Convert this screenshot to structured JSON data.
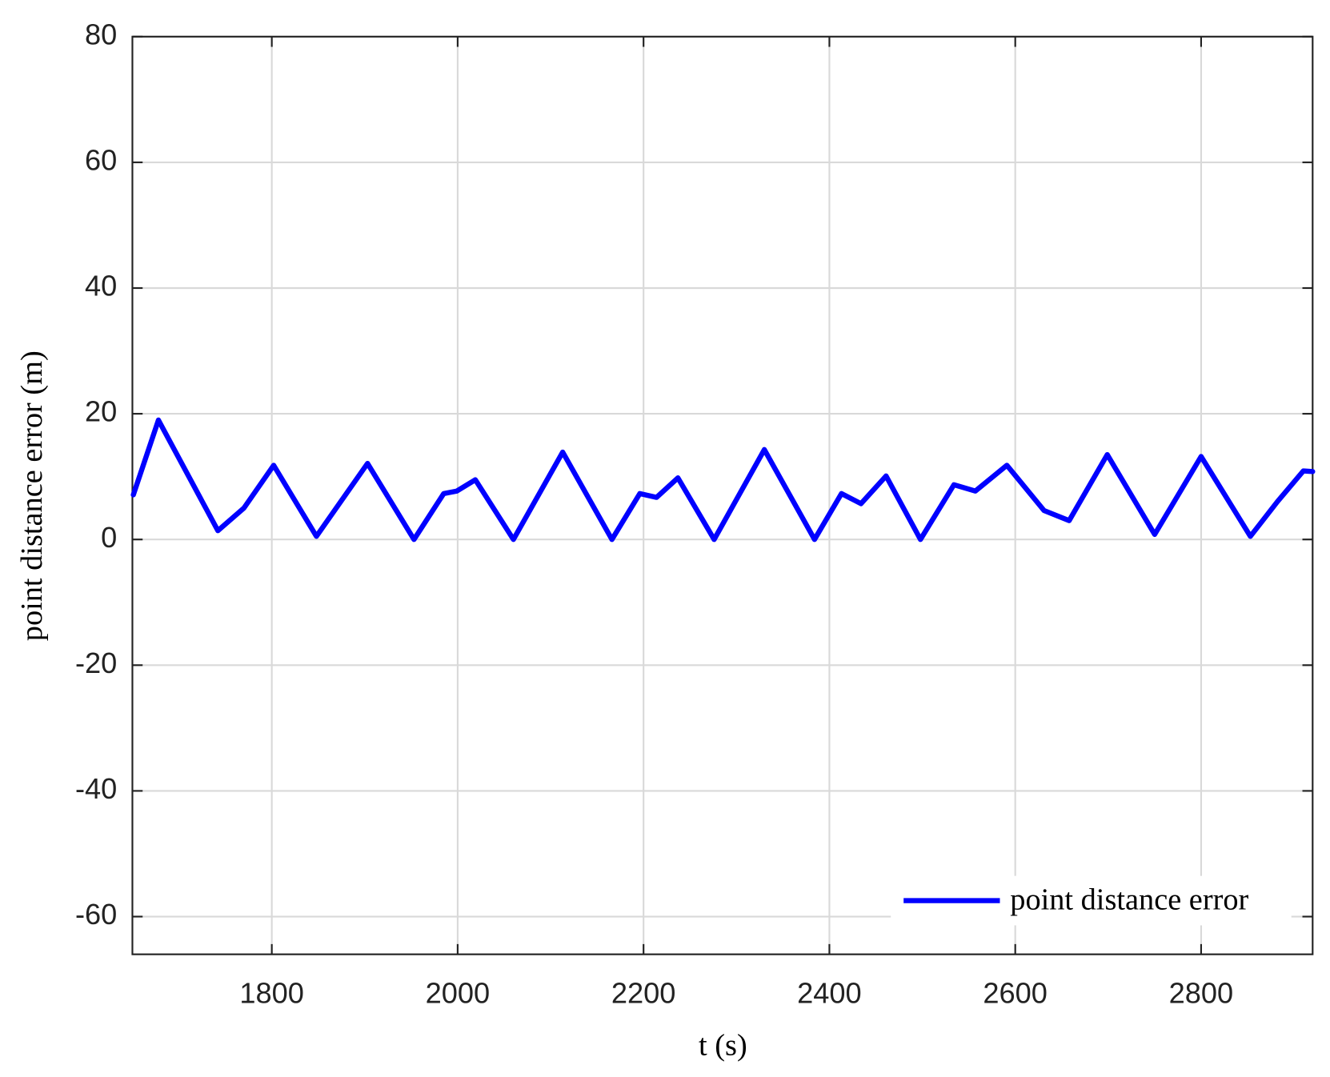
{
  "chart_data": {
    "type": "line",
    "x_label": "t (s)",
    "y_label": "point distance error (m)",
    "x": [
      1651,
      1678,
      1742,
      1770,
      1802,
      1848,
      1903,
      1953,
      1985,
      1999,
      2019,
      2060,
      2113,
      2166,
      2196,
      2214,
      2237,
      2276,
      2330,
      2384,
      2413,
      2434,
      2461,
      2498,
      2534,
      2557,
      2591,
      2631,
      2658,
      2699,
      2750,
      2800,
      2853,
      2882,
      2910,
      2920
    ],
    "series": [
      {
        "name": "point distance error",
        "color": "#0000ff",
        "values": [
          7.1,
          19,
          1.4,
          5,
          11.8,
          0.5,
          12.1,
          0,
          7.3,
          7.7,
          9.5,
          0,
          13.9,
          0,
          7.3,
          6.7,
          9.8,
          0,
          14.3,
          0,
          7.3,
          5.7,
          10.1,
          0,
          8.7,
          7.7,
          11.8,
          4.6,
          3,
          13.5,
          0.8,
          13.2,
          0.5,
          6,
          10.9,
          10.8
        ]
      }
    ],
    "xlim": [
      1650,
      2920
    ],
    "xticks": [
      1800,
      2000,
      2200,
      2400,
      2600,
      2800
    ],
    "ylim": [
      -66,
      80
    ],
    "yticks": [
      -60,
      -40,
      -20,
      0,
      20,
      40,
      60,
      80
    ],
    "grid": true,
    "legend": "lower right"
  }
}
